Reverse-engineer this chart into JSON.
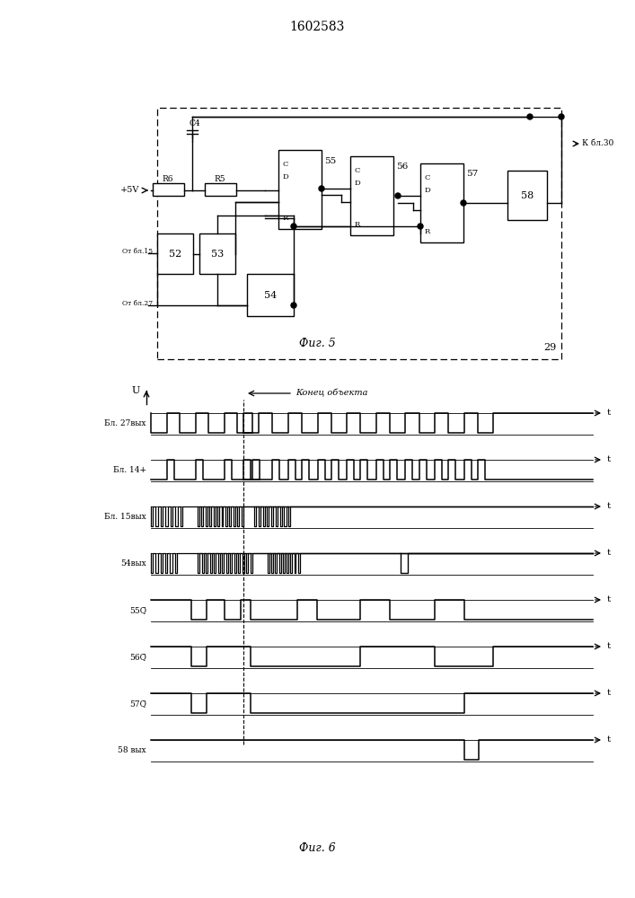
{
  "title": "1602583",
  "fig5_caption": "Фиг. 5",
  "fig6_caption": "Фиг. 6",
  "konec_text": "Конец объекта",
  "bg_color": "#ffffff",
  "line_color": "#000000"
}
